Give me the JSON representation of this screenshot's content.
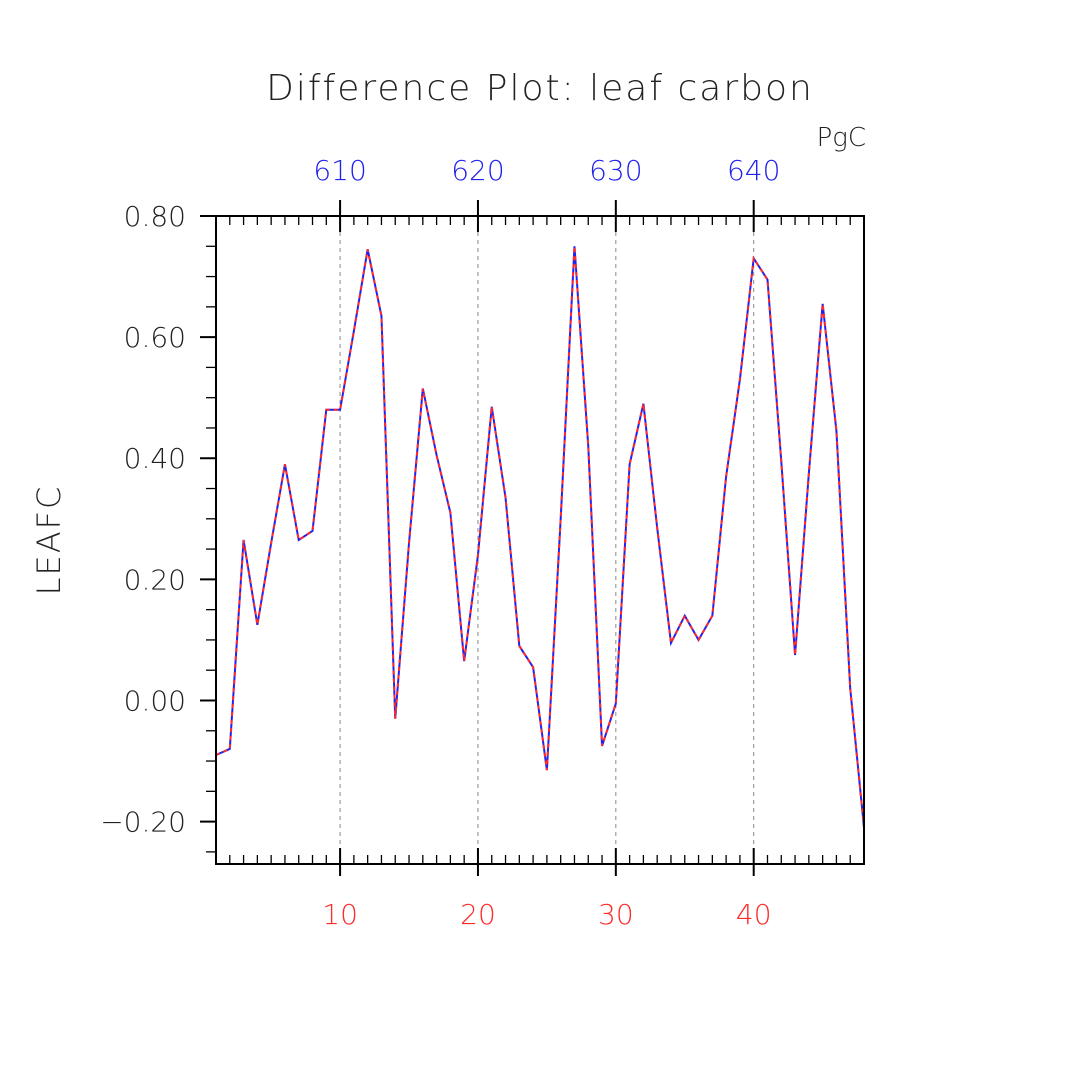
{
  "chart_data": {
    "type": "line",
    "title": "Difference Plot: leaf carbon",
    "ylabel": "LEAFC",
    "top_axis_units": "PgC",
    "xlim": [
      1,
      48
    ],
    "ylim": [
      -0.27,
      0.8
    ],
    "yticks": [
      {
        "value": 0.8,
        "label": "0.80"
      },
      {
        "value": 0.6,
        "label": "0.60"
      },
      {
        "value": 0.4,
        "label": "0.40"
      },
      {
        "value": 0.2,
        "label": "0.20"
      },
      {
        "value": 0.0,
        "label": "0.00"
      },
      {
        "value": -0.2,
        "label": "−0.20"
      }
    ],
    "xticks_bottom": [
      {
        "value": 10,
        "label": "10"
      },
      {
        "value": 20,
        "label": "20"
      },
      {
        "value": 30,
        "label": "30"
      },
      {
        "value": 40,
        "label": "40"
      }
    ],
    "xticks_top": [
      {
        "value": 10,
        "label": "610"
      },
      {
        "value": 20,
        "label": "620"
      },
      {
        "value": 30,
        "label": "630"
      },
      {
        "value": 40,
        "label": "640"
      }
    ],
    "gridlines": "vertical dashed at major x ticks",
    "colors": {
      "line_solid": "#2222ee",
      "line_dashed": "#ff2a2a",
      "bottom_axis": "#ff2a2a",
      "top_axis": "#2222ee",
      "grid": "#888888"
    },
    "series": [
      {
        "x": [
          1,
          2,
          3,
          4,
          5,
          6,
          7,
          8,
          9,
          10,
          11,
          12,
          13,
          14,
          15,
          16,
          17,
          18,
          19,
          20,
          21,
          22,
          23,
          24,
          25,
          26,
          27,
          28,
          29,
          30,
          31,
          32,
          33,
          34,
          35,
          36,
          37,
          38,
          39,
          40,
          41,
          42,
          43,
          44,
          45,
          46,
          47,
          48
        ],
        "values": [
          -0.09,
          -0.08,
          0.265,
          0.125,
          0.26,
          0.39,
          0.265,
          0.28,
          0.48,
          0.48,
          0.61,
          0.745,
          0.635,
          -0.03,
          0.26,
          0.515,
          0.405,
          0.31,
          0.065,
          0.24,
          0.485,
          0.335,
          0.09,
          0.055,
          -0.115,
          0.3,
          0.75,
          0.42,
          -0.075,
          -0.005,
          0.39,
          0.49,
          0.285,
          0.095,
          0.14,
          0.1,
          0.14,
          0.37,
          0.53,
          0.73,
          0.695,
          0.395,
          0.075,
          0.375,
          0.655,
          0.445,
          0.02,
          -0.21
        ]
      }
    ]
  }
}
